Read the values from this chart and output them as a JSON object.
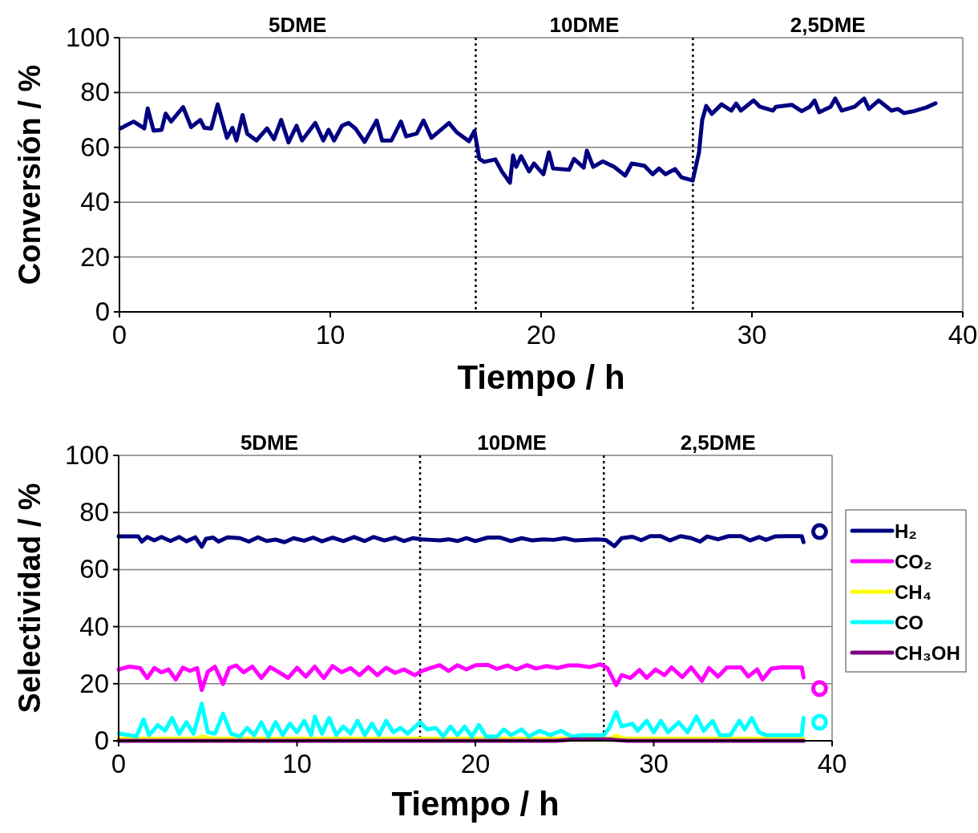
{
  "chart_data": [
    {
      "type": "line",
      "xlabel": "Tiempo / h",
      "ylabel": "Conversión / %",
      "xlim": [
        0,
        40
      ],
      "xticks": [
        0,
        10,
        20,
        30,
        40
      ],
      "ylim": [
        0,
        100
      ],
      "yticks": [
        0,
        20,
        40,
        60,
        80,
        100
      ],
      "grid": "y",
      "legend": false,
      "line_style": "solid",
      "annotations": [
        "5DME",
        "10DME",
        "2,5DME"
      ],
      "ref_lines": [
        {
          "axis": "x",
          "value": 16.9,
          "color": "#000000",
          "line_style": "dotted"
        },
        {
          "axis": "x",
          "value": 27.2,
          "color": "#000000",
          "line_style": "dotted"
        }
      ],
      "series": [
        {
          "color": "#000080",
          "x": [
            0.04,
            0.67,
            1.18,
            1.34,
            1.62,
            2.0,
            2.19,
            2.45,
            3.02,
            3.4,
            3.84,
            4.03,
            4.35,
            4.66,
            5.1,
            5.36,
            5.55,
            5.84,
            6.06,
            6.5,
            7.0,
            7.33,
            7.67,
            8.02,
            8.4,
            8.66,
            9.29,
            9.67,
            9.92,
            10.18,
            10.56,
            10.87,
            11.19,
            11.63,
            12.2,
            12.46,
            12.9,
            13.35,
            13.6,
            14.1,
            14.42,
            14.8,
            15.63,
            16.0,
            16.58,
            16.84,
            17.07,
            17.3,
            17.83,
            18.14,
            18.52,
            18.67,
            18.82,
            19.05,
            19.43,
            19.66,
            20.11,
            20.37,
            20.57,
            21.33,
            21.56,
            22.02,
            22.17,
            22.47,
            22.93,
            23.46,
            23.99,
            24.3,
            24.9,
            25.29,
            25.59,
            25.9,
            26.35,
            26.65,
            27.19,
            27.49,
            27.64,
            27.83,
            28.1,
            28.56,
            29.02,
            29.25,
            29.47,
            30.08,
            30.38,
            30.99,
            31.14,
            31.9,
            32.36,
            32.74,
            32.97,
            33.19,
            33.73,
            33.95,
            34.26,
            34.87,
            35.32,
            35.55,
            36.01,
            36.62,
            36.92,
            37.22,
            37.68,
            38.29,
            38.71
          ],
          "values": [
            66.9,
            69.4,
            66.9,
            74.2,
            66.1,
            66.4,
            72.3,
            69.4,
            74.7,
            67.4,
            70,
            67.1,
            66.9,
            75.7,
            63.5,
            67.1,
            62.5,
            71.8,
            65,
            62.5,
            66.9,
            63,
            70,
            61.8,
            67.9,
            62.5,
            68.9,
            62.5,
            66.4,
            62.5,
            67.9,
            68.9,
            66.9,
            62,
            69.8,
            62.5,
            62.5,
            69.4,
            64,
            65,
            69.8,
            63.5,
            68.9,
            65.5,
            62.2,
            66,
            55.8,
            54.7,
            55.6,
            51.2,
            47.1,
            57,
            52.9,
            56.8,
            51.2,
            54.1,
            50.2,
            58.2,
            52.3,
            51.8,
            55.8,
            52.6,
            58.8,
            52.9,
            54.9,
            52.9,
            49.7,
            54.1,
            53.3,
            50.2,
            52.3,
            50.2,
            52.1,
            49.1,
            47.9,
            58.2,
            69.9,
            75.1,
            72.2,
            75.7,
            73.4,
            76,
            73.4,
            77.1,
            74.8,
            73.4,
            74.8,
            75.5,
            73.2,
            74.8,
            77.1,
            72.8,
            74.8,
            77.8,
            73.4,
            74.8,
            77.8,
            74,
            77.1,
            73.4,
            74,
            72.5,
            73.2,
            74.6,
            76.1
          ]
        }
      ]
    },
    {
      "type": "line",
      "xlabel": "Tiempo / h",
      "ylabel": "Selectividad / %",
      "xlim": [
        0,
        40
      ],
      "xticks": [
        0,
        10,
        20,
        30,
        40
      ],
      "ylim": [
        0,
        100
      ],
      "yticks": [
        0,
        20,
        40,
        60,
        80,
        100
      ],
      "grid": "y",
      "legend": "right",
      "line_style": "solid",
      "annotations": [
        "5DME",
        "10DME",
        "2,5DME"
      ],
      "ref_lines": [
        {
          "axis": "x",
          "value": 16.9,
          "color": "#000000",
          "line_style": "dotted"
        },
        {
          "axis": "x",
          "value": 27.2,
          "color": "#000000",
          "line_style": "dotted"
        }
      ],
      "series": [
        {
          "name": "H₂",
          "color": "#000080",
          "x": [
            0,
            1.1,
            1.3,
            1.6,
            2.0,
            2.4,
            2.9,
            3.4,
            3.8,
            4.3,
            4.66,
            4.9,
            5.3,
            5.6,
            6.1,
            6.8,
            7.3,
            7.8,
            8.3,
            8.8,
            9.3,
            9.8,
            10.4,
            10.9,
            11.4,
            12.0,
            12.6,
            13.2,
            13.8,
            14.3,
            14.9,
            15.5,
            16.0,
            16.5,
            17.0,
            17.5,
            18.0,
            18.5,
            19.0,
            19.5,
            20.0,
            20.7,
            21.4,
            22.0,
            22.6,
            23.2,
            23.8,
            24.4,
            25.0,
            25.6,
            26.2,
            26.8,
            27.3,
            27.8,
            28.2,
            28.8,
            29.3,
            29.8,
            30.4,
            30.9,
            31.5,
            32.1,
            32.6,
            33.0,
            33.6,
            34.2,
            34.9,
            35.4,
            35.9,
            36.3,
            36.8,
            37.4,
            38.3,
            38.4
          ],
          "values": [
            71.6,
            71.6,
            69.8,
            71.4,
            70.2,
            71.4,
            70,
            71.4,
            69.9,
            71.3,
            68,
            70.8,
            71.2,
            69.8,
            71.3,
            71,
            69.8,
            71.3,
            70,
            70.5,
            69.6,
            71,
            70.1,
            71.2,
            69.9,
            71.2,
            70,
            71.4,
            70,
            71.4,
            70.2,
            71.2,
            70,
            71,
            70.6,
            70.4,
            70.2,
            70.6,
            70,
            71,
            70,
            71.2,
            71.2,
            70,
            71,
            70.2,
            70.6,
            70.4,
            71,
            70.2,
            70.4,
            70.6,
            70.4,
            68.2,
            71,
            71.5,
            70.3,
            71.7,
            71.7,
            70.2,
            71.7,
            71,
            69.8,
            71.6,
            70.6,
            71.7,
            71.7,
            70.2,
            71.4,
            70.4,
            71.6,
            71.7,
            71.7,
            69.6
          ]
        },
        {
          "name": "CO₂",
          "color": "#ff00ff",
          "x": [
            0,
            0.6,
            1.2,
            1.6,
            2.0,
            2.4,
            2.8,
            3.2,
            3.6,
            4.0,
            4.4,
            4.66,
            5.0,
            5.4,
            5.85,
            6.2,
            6.6,
            7.0,
            7.5,
            8.0,
            8.5,
            9.0,
            9.5,
            10.0,
            10.5,
            11.0,
            11.5,
            12.0,
            12.5,
            13.0,
            13.5,
            14.0,
            14.5,
            15.0,
            15.5,
            16.0,
            16.6,
            17.0,
            17.5,
            18.0,
            18.5,
            19.0,
            19.5,
            20.0,
            20.7,
            21.2,
            21.8,
            22.3,
            22.9,
            23.4,
            24.0,
            24.6,
            25.2,
            25.8,
            26.4,
            27.0,
            27.4,
            27.9,
            28.2,
            28.7,
            29.2,
            29.6,
            30.1,
            30.6,
            31.0,
            31.6,
            32.1,
            32.7,
            33.1,
            33.6,
            34.1,
            34.9,
            35.3,
            35.8,
            36.1,
            36.6,
            37.2,
            38.3,
            38.4
          ],
          "values": [
            25,
            26,
            25.5,
            22,
            25.5,
            24,
            25,
            21.5,
            25.6,
            24.5,
            25.5,
            17.8,
            24.2,
            26,
            19.9,
            25.5,
            26.4,
            24,
            26,
            22,
            25.8,
            24,
            22,
            25.6,
            22.5,
            26,
            22,
            26.2,
            24,
            25.5,
            23,
            25.8,
            23,
            25.6,
            23.8,
            25,
            23,
            24.5,
            25.5,
            26.5,
            24.5,
            26.5,
            25,
            26.5,
            26.6,
            25.2,
            26.4,
            25,
            26.5,
            25.3,
            26.2,
            25.5,
            26.4,
            26.4,
            25.8,
            26.8,
            25.5,
            19.5,
            23,
            22,
            24.8,
            22,
            25,
            23,
            25.7,
            22.3,
            25.7,
            21,
            25.5,
            22.5,
            25.7,
            25.7,
            22.5,
            25,
            21.5,
            25.3,
            25.8,
            25.7,
            22.2
          ]
        },
        {
          "name": "CH₄",
          "color": "#ffff00",
          "x": [
            0,
            4.4,
            4.7,
            5.2,
            11.0,
            27.6,
            27.9,
            28.3,
            38.4
          ],
          "values": [
            0.8,
            0.8,
            1.5,
            0.8,
            0.8,
            0.8,
            1.8,
            0.8,
            0.8
          ]
        },
        {
          "name": "CO",
          "color": "#00ffff",
          "x": [
            0,
            0.6,
            1.0,
            1.4,
            1.7,
            2.2,
            2.6,
            3.0,
            3.4,
            3.8,
            4.2,
            4.66,
            5.0,
            5.4,
            5.85,
            6.3,
            6.8,
            7.2,
            7.6,
            8.0,
            8.4,
            8.8,
            9.2,
            9.6,
            10.0,
            10.4,
            10.8,
            11.0,
            11.4,
            11.8,
            12.2,
            12.6,
            13.0,
            13.4,
            13.8,
            14.2,
            14.6,
            15.0,
            15.4,
            15.8,
            16.2,
            16.9,
            17.3,
            17.8,
            18.2,
            18.6,
            19.0,
            19.4,
            19.8,
            20.2,
            20.6,
            21.2,
            21.6,
            22.0,
            22.6,
            23.0,
            23.6,
            24.2,
            24.8,
            25.4,
            26.0,
            26.6,
            27.2,
            27.5,
            27.9,
            28.2,
            28.8,
            29.1,
            29.6,
            30.0,
            30.4,
            30.8,
            31.4,
            31.9,
            32.4,
            32.8,
            33.3,
            33.7,
            34.3,
            34.8,
            35.1,
            35.5,
            35.9,
            36.3,
            37.0,
            38.3,
            38.4
          ],
          "values": [
            2.5,
            2,
            1.5,
            7.5,
            2,
            5.5,
            3.5,
            8,
            2.5,
            6.5,
            2.5,
            13,
            3,
            2.5,
            9.5,
            2.5,
            1.5,
            4.5,
            2,
            6.5,
            1.5,
            6.5,
            2,
            6,
            3,
            7,
            2,
            8.5,
            2.5,
            8,
            2,
            5,
            2.5,
            7,
            2,
            6,
            2,
            7,
            3,
            4.5,
            2.5,
            6.5,
            4,
            4.5,
            1.5,
            5,
            2,
            5,
            1.5,
            5.5,
            1.5,
            1.5,
            4,
            2,
            4,
            1.5,
            3.5,
            2,
            3.5,
            1.5,
            2,
            2,
            2,
            4.5,
            10,
            5,
            6,
            3.5,
            7,
            3,
            7,
            3,
            6.5,
            3,
            8.5,
            3.5,
            7,
            2,
            2,
            7,
            4,
            8,
            3,
            2,
            2,
            2,
            8
          ]
        },
        {
          "name": "CH₃OH",
          "color": "#800080",
          "x": [
            0,
            24.5,
            25.5,
            27.5,
            28.5,
            38.4
          ],
          "values": [
            0,
            0,
            0.5,
            0.5,
            0,
            0
          ]
        },
        {
          "type": "scatter",
          "marker": "circle",
          "color": "#000080",
          "x": [
            39.3
          ],
          "values": [
            73.3
          ]
        },
        {
          "type": "scatter",
          "marker": "circle",
          "color": "#ff00ff",
          "x": [
            39.3
          ],
          "values": [
            18.3
          ]
        },
        {
          "type": "scatter",
          "marker": "circle",
          "color": "#00ffff",
          "x": [
            39.3
          ],
          "values": [
            6.5
          ]
        }
      ]
    }
  ]
}
